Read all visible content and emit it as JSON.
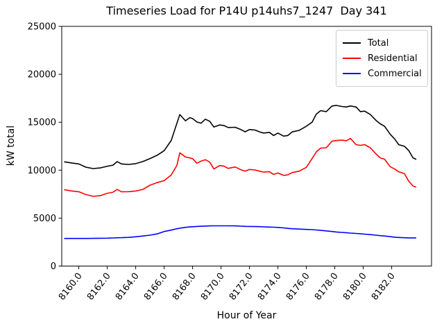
{
  "chart_data": {
    "type": "line",
    "title": "Timeseries Load for P14U p14uhs7_1247  Day 341",
    "xlabel": "Hour of Year",
    "ylabel": "kW total",
    "xlim": [
      8158.8,
      8184.8
    ],
    "ylim": [
      0,
      25000
    ],
    "grid": false,
    "legend_position": "upper right",
    "xticks": {
      "values": [
        8160,
        8162,
        8164,
        8166,
        8168,
        8170,
        8172,
        8174,
        8176,
        8178,
        8180,
        8182
      ],
      "labels": [
        "8160.0",
        "8162.0",
        "8164.0",
        "8166.0",
        "8168.0",
        "8170.0",
        "8172.0",
        "8174.0",
        "8176.0",
        "8178.0",
        "8180.0",
        "8182.0"
      ]
    },
    "yticks": {
      "values": [
        0,
        5000,
        10000,
        15000,
        20000,
        25000
      ],
      "labels": [
        "0",
        "5000",
        "10000",
        "15000",
        "20000",
        "25000"
      ]
    },
    "x": [
      8159.0,
      8159.5,
      8160.0,
      8160.5,
      8161.0,
      8161.5,
      8162.0,
      8162.4,
      8162.7,
      8163.0,
      8163.5,
      8164.0,
      8164.5,
      8165.0,
      8165.5,
      8166.0,
      8166.5,
      8166.9,
      8167.1,
      8167.5,
      8167.8,
      8168.0,
      8168.3,
      8168.6,
      8168.9,
      8169.2,
      8169.5,
      8169.9,
      8170.2,
      8170.5,
      8171.0,
      8171.4,
      8171.7,
      8172.0,
      8172.4,
      8172.7,
      8173.0,
      8173.4,
      8173.7,
      8174.0,
      8174.4,
      8174.7,
      8175.0,
      8175.5,
      8176.0,
      8176.4,
      8176.7,
      8177.0,
      8177.4,
      8177.8,
      8178.1,
      8178.5,
      8178.8,
      8179.1,
      8179.5,
      8179.8,
      8180.1,
      8180.5,
      8180.9,
      8181.2,
      8181.5,
      8181.9,
      8182.2,
      8182.5,
      8182.9,
      8183.2,
      8183.5,
      8183.7
    ],
    "series": [
      {
        "name": "Total",
        "color": "#000000",
        "values": [
          10870,
          10750,
          10650,
          10310,
          10170,
          10230,
          10410,
          10520,
          10900,
          10650,
          10600,
          10680,
          10900,
          11210,
          11550,
          12030,
          13100,
          14900,
          15800,
          15150,
          15480,
          15380,
          15020,
          14900,
          15320,
          15100,
          14500,
          14720,
          14660,
          14450,
          14470,
          14230,
          14000,
          14240,
          14180,
          14000,
          13870,
          13940,
          13620,
          13870,
          13550,
          13620,
          13990,
          14150,
          14590,
          15000,
          15850,
          16210,
          16110,
          16690,
          16760,
          16640,
          16590,
          16690,
          16590,
          16110,
          16160,
          15800,
          15190,
          14830,
          14590,
          13740,
          13260,
          12660,
          12490,
          12050,
          11280,
          11150
        ]
      },
      {
        "name": "Residential",
        "color": "#ff0000",
        "values": [
          7950,
          7830,
          7750,
          7460,
          7270,
          7340,
          7590,
          7700,
          7990,
          7750,
          7760,
          7830,
          7990,
          8430,
          8700,
          8910,
          9500,
          10500,
          11810,
          11380,
          11280,
          11200,
          10720,
          10950,
          11090,
          10850,
          10120,
          10480,
          10430,
          10190,
          10330,
          10040,
          9900,
          10070,
          10020,
          9900,
          9800,
          9850,
          9560,
          9700,
          9460,
          9510,
          9750,
          9900,
          10300,
          11200,
          11900,
          12300,
          12340,
          13020,
          13090,
          13140,
          13070,
          13310,
          12660,
          12590,
          12660,
          12340,
          11690,
          11280,
          11140,
          10360,
          10120,
          9830,
          9640,
          8840,
          8360,
          8240
        ]
      },
      {
        "name": "Commercial",
        "color": "#0000ff",
        "values": [
          2880,
          2880,
          2880,
          2880,
          2890,
          2900,
          2910,
          2930,
          2950,
          2960,
          2990,
          3050,
          3130,
          3220,
          3350,
          3600,
          3750,
          3890,
          3950,
          4040,
          4080,
          4100,
          4130,
          4150,
          4170,
          4190,
          4200,
          4200,
          4200,
          4200,
          4190,
          4160,
          4140,
          4130,
          4120,
          4110,
          4090,
          4070,
          4050,
          4030,
          3980,
          3930,
          3890,
          3860,
          3820,
          3800,
          3760,
          3720,
          3670,
          3600,
          3550,
          3510,
          3480,
          3440,
          3400,
          3370,
          3330,
          3280,
          3220,
          3170,
          3130,
          3070,
          3010,
          2980,
          2950,
          2940,
          2940,
          2940
        ]
      }
    ]
  }
}
